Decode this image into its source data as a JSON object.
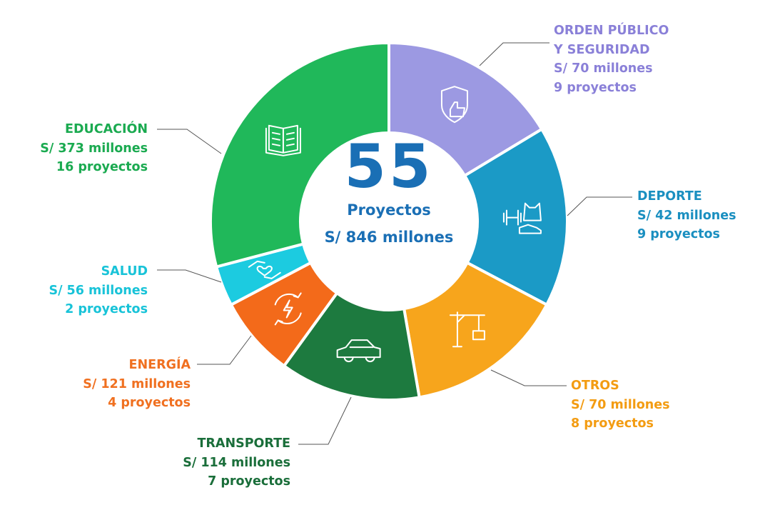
{
  "center": {
    "count": "55",
    "label": "Proyectos",
    "amount": "S/ 846 millones"
  },
  "chart_data": {
    "type": "pie",
    "donut": true,
    "slice_basis": "project count",
    "categories": [
      "ORDEN PÚBLICO Y SEGURIDAD",
      "DEPORTE",
      "OTROS",
      "TRANSPORTE",
      "ENERGÍA",
      "SALUD",
      "EDUCACIÓN"
    ],
    "projects": [
      9,
      9,
      8,
      7,
      4,
      2,
      16
    ],
    "amounts_millions": [
      70,
      42,
      70,
      114,
      121,
      56,
      373
    ],
    "colors": [
      "#9c99e2",
      "#1b9ac6",
      "#f7a51c",
      "#1d7a3f",
      "#f36a1a",
      "#1ccbe0",
      "#20b85a"
    ],
    "text_colors": [
      "#8a80d8",
      "#1a8fc0",
      "#f39c12",
      "#1a6e3a",
      "#f07020",
      "#18c3d8",
      "#1aaa50"
    ],
    "icons": [
      "shield-thumbs-up-icon",
      "dumbbell-shirt-shoe-icon",
      "crane-icon",
      "car-icon",
      "energy-bolt-icon",
      "hands-heart-icon",
      "open-book-icon"
    ],
    "labels": [
      {
        "title": [
          "ORDEN PÚBLICO",
          "Y SEGURIDAD"
        ],
        "amount": "S/ 70 millones",
        "projects": "9 proyectos"
      },
      {
        "title": [
          "DEPORTE"
        ],
        "amount": "S/ 42 millones",
        "projects": "9 proyectos"
      },
      {
        "title": [
          "OTROS"
        ],
        "amount": "S/ 70 millones",
        "projects": "8 proyectos"
      },
      {
        "title": [
          "TRANSPORTE"
        ],
        "amount": "S/ 114 millones",
        "projects": "7 proyectos"
      },
      {
        "title": [
          "ENERGÍA"
        ],
        "amount": "S/ 121 millones",
        "projects": "4 proyectos"
      },
      {
        "title": [
          "SALUD"
        ],
        "amount": "S/ 56 millones",
        "projects": "2 proyectos"
      },
      {
        "title": [
          "EDUCACIÓN"
        ],
        "amount": "S/ 373 millones",
        "projects": "16 proyectos"
      }
    ]
  }
}
